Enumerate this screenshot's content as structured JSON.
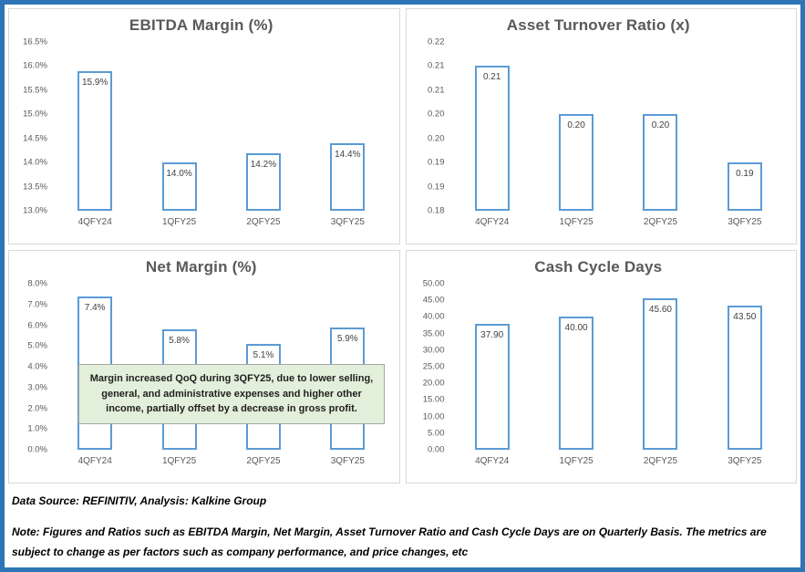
{
  "colors": {
    "frame-blue": "#2E75B6",
    "bar-border": "#5B9BD5",
    "title-gray": "#595959",
    "annotation-green": "#E2EFDA"
  },
  "chart_data": [
    {
      "type": "bar",
      "title": "EBITDA Margin (%)",
      "categories": [
        "4QFY24",
        "1QFY25",
        "2QFY25",
        "3QFY25"
      ],
      "values": [
        15.9,
        14.0,
        14.2,
        14.4
      ],
      "labels": [
        "15.9%",
        "14.0%",
        "14.2%",
        "14.4%"
      ],
      "y_ticks": [
        "16.5%",
        "16.0%",
        "15.5%",
        "15.0%",
        "14.5%",
        "14.0%",
        "13.5%",
        "13.0%"
      ],
      "y_min": 13.0,
      "y_max": 16.5,
      "grid": false,
      "legend": "none",
      "bar_fill": "#FFFFFF",
      "bar_stroke": "#5B9BD5"
    },
    {
      "type": "bar",
      "title": "Asset Turnover Ratio (x)",
      "categories": [
        "4QFY24",
        "1QFY25",
        "2QFY25",
        "3QFY25"
      ],
      "values": [
        0.21,
        0.2,
        0.2,
        0.19
      ],
      "labels": [
        "0.21",
        "0.20",
        "0.20",
        "0.19"
      ],
      "y_ticks": [
        "0.22",
        "0.21",
        "0.21",
        "0.20",
        "0.20",
        "0.19",
        "0.19",
        "0.18"
      ],
      "y_min": 0.18,
      "y_max": 0.215,
      "grid": false,
      "legend": "none",
      "bar_fill": "#FFFFFF",
      "bar_stroke": "#5B9BD5"
    },
    {
      "type": "bar",
      "title": "Net Margin (%)",
      "categories": [
        "4QFY24",
        "1QFY25",
        "2QFY25",
        "3QFY25"
      ],
      "values": [
        7.4,
        5.8,
        5.1,
        5.9
      ],
      "labels": [
        "7.4%",
        "5.8%",
        "5.1%",
        "5.9%"
      ],
      "y_ticks": [
        "8.0%",
        "7.0%",
        "6.0%",
        "5.0%",
        "4.0%",
        "3.0%",
        "2.0%",
        "1.0%",
        "0.0%"
      ],
      "y_min": 0.0,
      "y_max": 8.0,
      "grid": false,
      "legend": "none",
      "bar_fill": "#FFFFFF",
      "bar_stroke": "#5B9BD5"
    },
    {
      "type": "bar",
      "title": "Cash Cycle Days",
      "categories": [
        "4QFY24",
        "1QFY25",
        "2QFY25",
        "3QFY25"
      ],
      "values": [
        37.9,
        40.0,
        45.6,
        43.5
      ],
      "labels": [
        "37.90",
        "40.00",
        "45.60",
        "43.50"
      ],
      "y_ticks": [
        "50.00",
        "45.00",
        "40.00",
        "35.00",
        "30.00",
        "25.00",
        "20.00",
        "15.00",
        "10.00",
        "5.00",
        "0.00"
      ],
      "y_min": 0.0,
      "y_max": 50.0,
      "grid": false,
      "legend": "none",
      "bar_fill": "#FFFFFF",
      "bar_stroke": "#5B9BD5"
    }
  ],
  "annotation": {
    "text": "Margin increased QoQ during 3QFY25, due to lower selling, general, and administrative expenses and higher other income, partially offset by a decrease in gross profit.",
    "background": "#E2EFDA"
  },
  "footer": {
    "source": "Data Source: REFINITIV, Analysis: Kalkine Group",
    "note": "Note: Figures and Ratios such as EBITDA Margin, Net Margin, Asset Turnover Ratio and Cash Cycle Days are on Quarterly Basis. The metrics are subject to change as per factors such as company performance, and price changes, etc"
  }
}
